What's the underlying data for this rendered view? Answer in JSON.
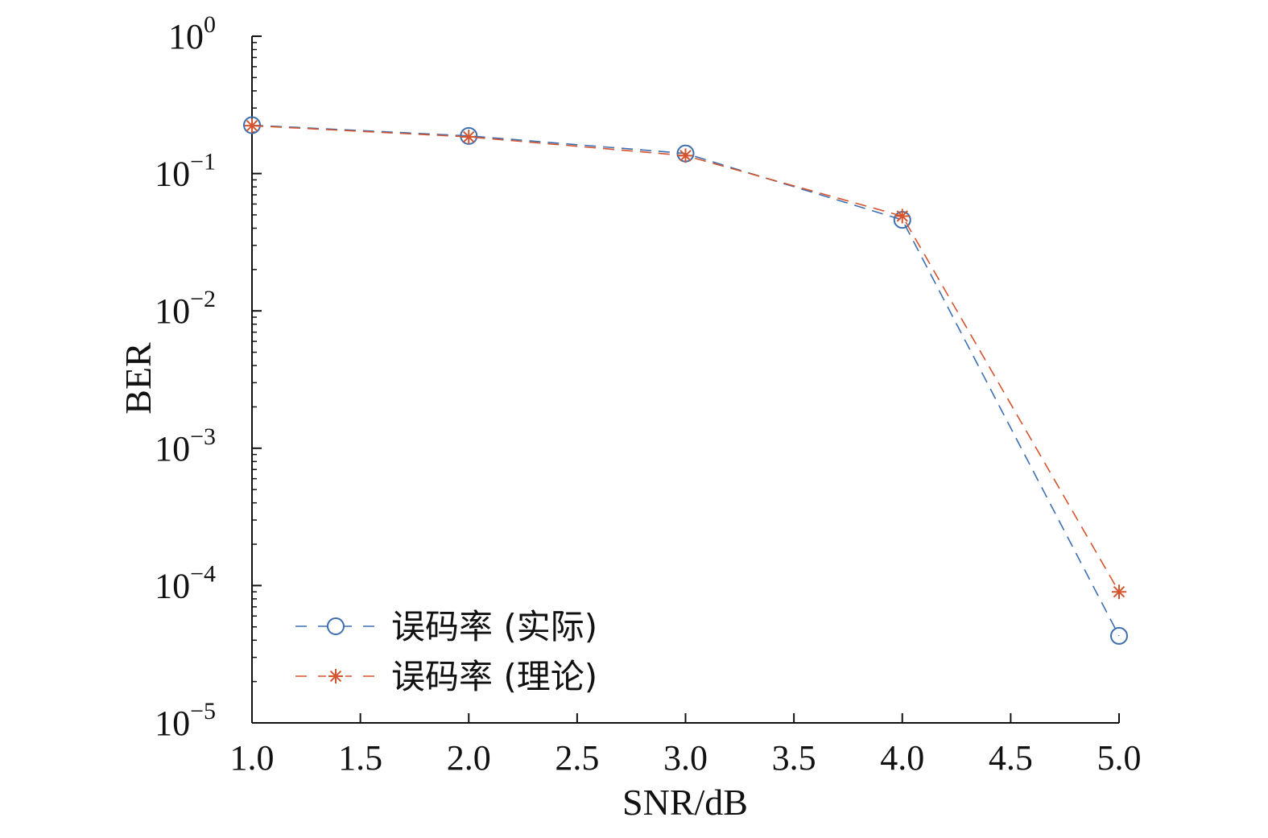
{
  "chart_data": {
    "type": "line",
    "xlabel": "SNR/dB",
    "ylabel": "BER",
    "x": [
      1.0,
      2.0,
      3.0,
      4.0,
      5.0
    ],
    "xlim": [
      1.0,
      5.0
    ],
    "xticks": [
      "1.0",
      "1.5",
      "2.0",
      "2.5",
      "3.0",
      "3.5",
      "4.0",
      "4.5",
      "5.0"
    ],
    "ylim": [
      1e-05,
      1
    ],
    "yscale": "log",
    "yticks": [
      {
        "base": "10",
        "exp": "0"
      },
      {
        "base": "10",
        "exp": "−1"
      },
      {
        "base": "10",
        "exp": "−2"
      },
      {
        "base": "10",
        "exp": "−3"
      },
      {
        "base": "10",
        "exp": "−4"
      },
      {
        "base": "10",
        "exp": "−5"
      }
    ],
    "grid": false,
    "legend_position": "bottom-left",
    "series": [
      {
        "name": "误码率 (实际)",
        "marker": "circle",
        "line": "dashed",
        "color": "#3d6fb0",
        "values": [
          0.225,
          0.188,
          0.14,
          0.046,
          4.3e-05
        ]
      },
      {
        "name": "误码率 (理论)",
        "marker": "asterisk",
        "line": "dashed",
        "color": "#d5542e",
        "values": [
          0.223,
          0.185,
          0.135,
          0.049,
          9e-05
        ]
      }
    ]
  }
}
